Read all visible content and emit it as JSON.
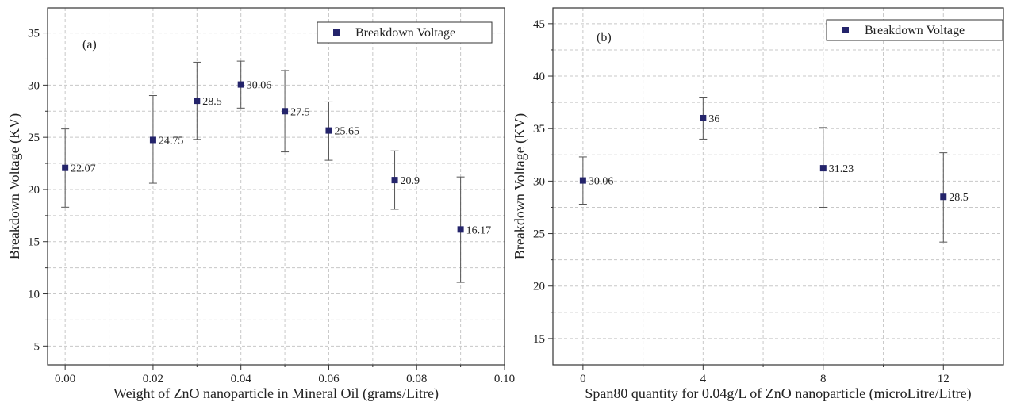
{
  "colors": {
    "marker": "#24246b",
    "grid": "#c8c8c8",
    "axis": "#333333",
    "errorbar": "#555555"
  },
  "chart_data": [
    {
      "type": "scatter",
      "panel_label": "(a)",
      "xlabel": "Weight of ZnO nanoparticle in Mineral Oil (grams/Litre)",
      "ylabel": "Breakdown Voltage (KV)",
      "xlim": [
        -0.004,
        0.1
      ],
      "ylim": [
        3.2,
        37.4
      ],
      "xticks": [
        0.0,
        0.02,
        0.04,
        0.06,
        0.08,
        0.1
      ],
      "xtick_labels": [
        "0.00",
        "0.02",
        "0.04",
        "0.06",
        "0.08",
        "0.10"
      ],
      "yticks": [
        5,
        10,
        15,
        20,
        25,
        30,
        35
      ],
      "ytick_labels": [
        "5",
        "10",
        "15",
        "20",
        "25",
        "30",
        "35"
      ],
      "grid": true,
      "legend_position": "top-right",
      "series": [
        {
          "name": "Breakdown Voltage",
          "x": [
            0.0,
            0.02,
            0.03,
            0.04,
            0.05,
            0.06,
            0.075,
            0.09
          ],
          "y": [
            22.07,
            24.75,
            28.5,
            30.06,
            27.5,
            25.65,
            20.9,
            16.17
          ],
          "err_low": [
            18.3,
            20.6,
            24.8,
            27.8,
            23.6,
            22.8,
            18.1,
            11.1
          ],
          "err_high": [
            25.8,
            29.0,
            32.2,
            32.3,
            31.4,
            28.4,
            23.7,
            21.2
          ],
          "labels": [
            "22.07",
            "24.75",
            "28.5",
            "30.06",
            "27.5",
            "25.65",
            "20.9",
            "16.17"
          ]
        }
      ]
    },
    {
      "type": "scatter",
      "panel_label": "(b)",
      "xlabel": "Span80 quantity for 0.04g/L of ZnO nanoparticle (microLitre/Litre)",
      "ylabel": "Breakdown Voltage (KV)",
      "xlim": [
        -1.0,
        14.0
      ],
      "ylim": [
        12.5,
        46.5
      ],
      "xticks": [
        0,
        4,
        8,
        12
      ],
      "xtick_labels": [
        "0",
        "4",
        "8",
        "12"
      ],
      "yticks": [
        15,
        20,
        25,
        30,
        35,
        40,
        45
      ],
      "ytick_labels": [
        "15",
        "20",
        "25",
        "30",
        "35",
        "40",
        "45"
      ],
      "grid": true,
      "legend_position": "top-right",
      "series": [
        {
          "name": "Breakdown Voltage",
          "x": [
            0,
            4,
            8,
            12
          ],
          "y": [
            30.06,
            36,
            31.23,
            28.5
          ],
          "err_low": [
            27.8,
            34.0,
            27.5,
            24.2
          ],
          "err_high": [
            32.3,
            38.0,
            35.1,
            32.7
          ],
          "labels": [
            "30.06",
            "36",
            "31.23",
            "28.5"
          ]
        }
      ]
    }
  ]
}
